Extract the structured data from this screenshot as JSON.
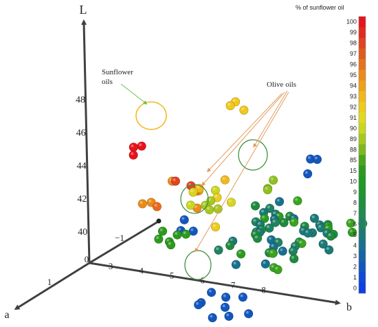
{
  "chart_data": {
    "type": "scatter",
    "axes": {
      "vertical": {
        "label": "L",
        "ticks": [
          "40",
          "42",
          "44",
          "46",
          "48"
        ]
      },
      "horizontal": {
        "label": "b",
        "ticks": [
          "3",
          "4",
          "5",
          "6",
          "7",
          "8"
        ]
      },
      "depth": {
        "label": "a",
        "ticks": [
          "1",
          "0",
          "-1"
        ]
      }
    },
    "annotations": [
      {
        "text": "Sunflower oils"
      },
      {
        "text": "Olive oils"
      }
    ],
    "colorbar": {
      "title": "% of sunflower oil",
      "ticks": [
        "100",
        "99",
        "98",
        "97",
        "96",
        "95",
        "94",
        "93",
        "92",
        "91",
        "90",
        "89",
        "88",
        "85",
        "15",
        "10",
        "9",
        "8",
        "7",
        "6",
        "5",
        "4",
        "3",
        "2",
        "1",
        "0"
      ],
      "colors": [
        "#e8141b",
        "#e22a1e",
        "#e04320",
        "#e05a1f",
        "#e6731c",
        "#ec8b1a",
        "#f0a01b",
        "#f1b71c",
        "#eccc1d",
        "#e1db1f",
        "#c9d81f",
        "#a7c81f",
        "#7eb81e",
        "#49a51f",
        "#2c9a1f",
        "#1f9a23",
        "#1d962f",
        "#1f8f3e",
        "#218a4f",
        "#1f8260",
        "#1b7a77",
        "#18708e",
        "#1564a6",
        "#1257be",
        "#0f4ad2",
        "#0c3fe4"
      ]
    },
    "clusters": [
      {
        "sunflower_pct": 100,
        "color": "#e8141b",
        "a": 1.0,
        "b": 4.8,
        "L": 47.6,
        "n": 3
      },
      {
        "sunflower_pct": 93,
        "color": "#f1c81c",
        "a": -0.8,
        "b": 6.6,
        "L": 48.8,
        "n": 3
      },
      {
        "sunflower_pct": 0,
        "color": "#1257be",
        "a": -1.6,
        "b": 8.0,
        "L": 44.4,
        "n": 3
      },
      {
        "sunflower_pct": 95,
        "color": "#e86a1c",
        "a": 0.3,
        "b": 5.6,
        "L": 44.0,
        "n": 9
      },
      {
        "sunflower_pct": 90,
        "color": "#d9d41f",
        "a": -0.1,
        "b": 6.5,
        "L": 43.4,
        "n": 12
      },
      {
        "sunflower_pct": 0,
        "color": "#1257be",
        "a": 0.3,
        "b": 5.9,
        "L": 42.4,
        "n": 3
      },
      {
        "sunflower_pct": 89,
        "color": "#8fc01f",
        "a": -0.8,
        "b": 7.6,
        "L": 44.0,
        "n": 3
      },
      {
        "sunflower_pct": 10,
        "color": "#2c9a1f",
        "a": -0.3,
        "b": 4.7,
        "L": 40.5,
        "n": 6
      },
      {
        "sunflower_pct": 5,
        "color": "#1f8a3e",
        "a": -1.2,
        "b": 7.7,
        "L": 40.6,
        "n": 60
      },
      {
        "sunflower_pct": 0,
        "color": "#1257be",
        "a": -0.4,
        "b": 6.4,
        "L": 37.0,
        "n": 9
      }
    ]
  }
}
